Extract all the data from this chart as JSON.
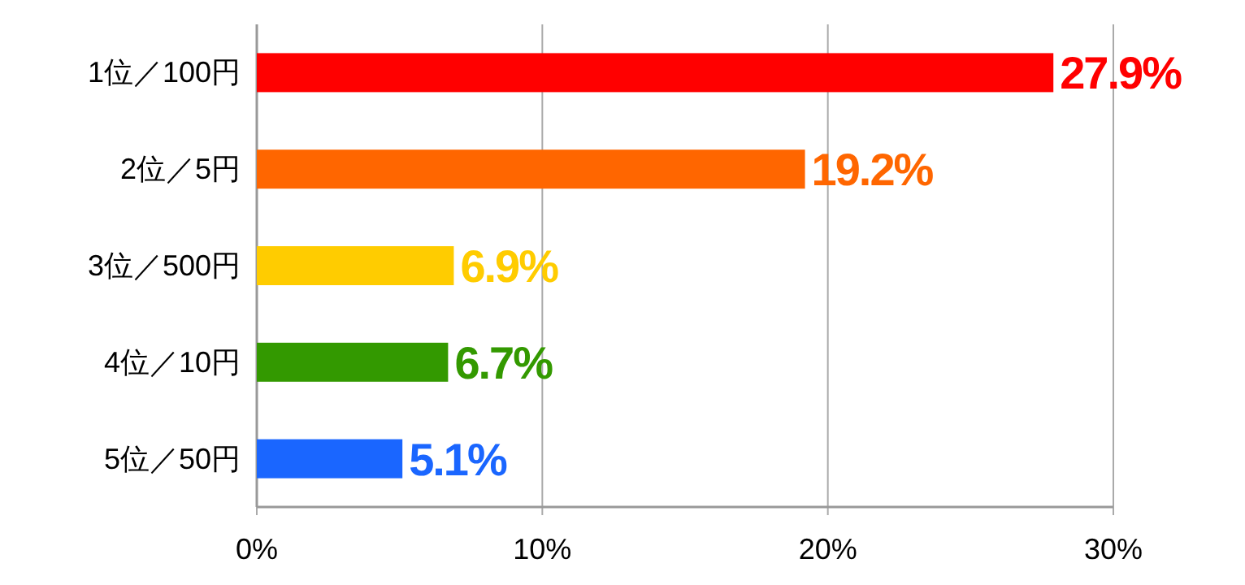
{
  "chart_data": {
    "type": "bar",
    "orientation": "horizontal",
    "categories": [
      "1位／100円",
      "2位／5円",
      "3位／500円",
      "4位／10円",
      "5位／50円"
    ],
    "values": [
      27.9,
      19.2,
      6.9,
      6.7,
      5.1
    ],
    "colors": [
      "#ff0000",
      "#ff6600",
      "#ffcc00",
      "#339900",
      "#1a66ff"
    ],
    "value_labels": [
      "27.9%",
      "19.2%",
      "6.9%",
      "6.7%",
      "5.1%"
    ],
    "xlim": [
      0,
      30
    ],
    "xticks": [
      {
        "value": 0,
        "label": "0%"
      },
      {
        "value": 10,
        "label": "10%"
      },
      {
        "value": 20,
        "label": "20%"
      },
      {
        "value": 30,
        "label": "30%"
      }
    ],
    "grid": "x"
  }
}
